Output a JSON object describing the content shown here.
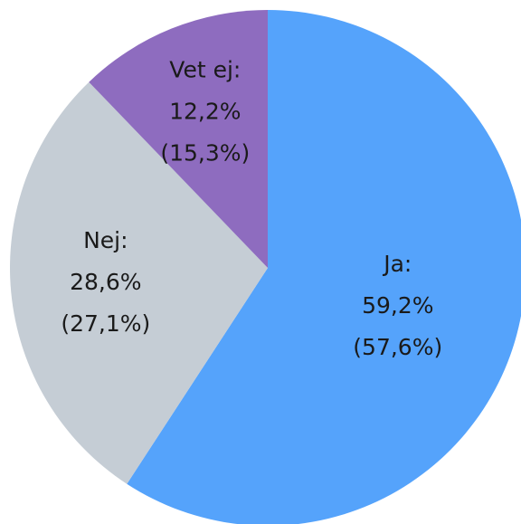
{
  "chart_data": {
    "type": "pie",
    "categories": [
      "Ja:",
      "Nej:",
      "Vet ej:"
    ],
    "values": [
      59.2,
      28.6,
      12.2
    ],
    "value_labels": [
      "59,2%",
      "28,6%",
      "12,2%"
    ],
    "previous_values": [
      57.6,
      27.1,
      15.3
    ],
    "previous_value_labels": [
      "(57,6%)",
      "(27,1%)",
      "(15,3%)"
    ],
    "colors": [
      "#55a3fb",
      "#c5cdd5",
      "#8e6cbf"
    ]
  }
}
